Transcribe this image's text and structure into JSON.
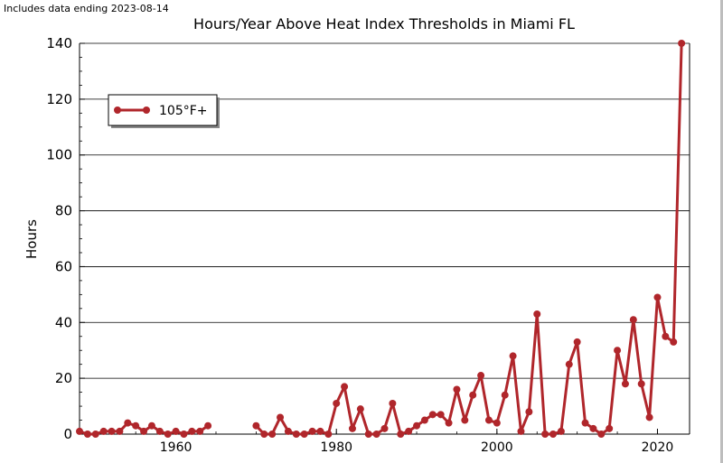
{
  "note": "Includes data ending 2023-08-14",
  "chart_data": {
    "type": "line",
    "title": "Hours/Year Above Heat Index Thresholds in Miami FL",
    "xlabel": "",
    "ylabel": "Hours",
    "xlim": [
      1948,
      2024
    ],
    "ylim": [
      0,
      140
    ],
    "xticks": [
      1960,
      1980,
      2000,
      2020
    ],
    "yticks": [
      0,
      20,
      40,
      60,
      80,
      100,
      120,
      140
    ],
    "grid": "horizontal",
    "legend": "top-left",
    "series": [
      {
        "name": "105°F+",
        "color": "#b0262b",
        "segments": [
          {
            "x": [
              1948,
              1949,
              1950,
              1951,
              1952,
              1953,
              1954,
              1955,
              1956,
              1957,
              1958,
              1959,
              1960,
              1961,
              1962,
              1963,
              1964
            ],
            "y": [
              1,
              0,
              0,
              1,
              1,
              1,
              4,
              3,
              1,
              3,
              1,
              0,
              1,
              0,
              1,
              1,
              3
            ]
          },
          {
            "x": [
              1970,
              1971,
              1972,
              1973,
              1974,
              1975,
              1976,
              1977,
              1978,
              1979,
              1980,
              1981,
              1982,
              1983,
              1984,
              1985,
              1986,
              1987,
              1988,
              1989,
              1990,
              1991,
              1992,
              1993,
              1994,
              1995,
              1996,
              1997,
              1998,
              1999,
              2000,
              2001,
              2002,
              2003,
              2004,
              2005,
              2006,
              2007,
              2008,
              2009,
              2010,
              2011,
              2012,
              2013,
              2014,
              2015,
              2016,
              2017,
              2018,
              2019,
              2020,
              2021,
              2022,
              2023
            ],
            "y": [
              3,
              0,
              0,
              6,
              1,
              0,
              0,
              1,
              1,
              0,
              11,
              17,
              2,
              9,
              0,
              0,
              2,
              11,
              0,
              1,
              3,
              5,
              7,
              7,
              4,
              16,
              5,
              14,
              21,
              5,
              4,
              14,
              28,
              1,
              8,
              43,
              0,
              0,
              1,
              25,
              33,
              4,
              2,
              0,
              2,
              30,
              18,
              41,
              18,
              6,
              49,
              35,
              33,
              140
            ]
          }
        ]
      }
    ]
  }
}
